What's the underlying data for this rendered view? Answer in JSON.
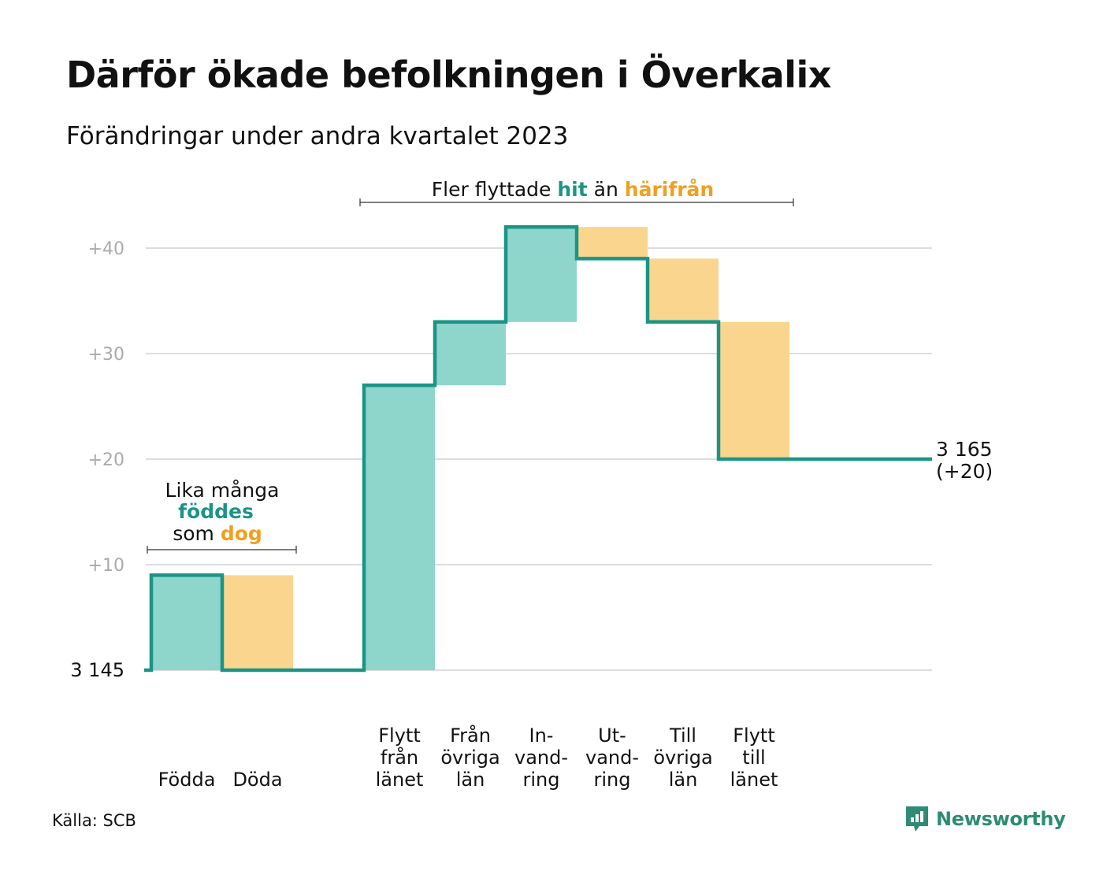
{
  "title": "Därför ökade befolkningen i Överkalix",
  "subtitle": "Förändringar under andra kvartalet 2023",
  "source": "Källa: SCB",
  "brand": {
    "name": "Newsworthy",
    "icon": "newsworthy-logo-icon"
  },
  "colors": {
    "increase": "#8ed5cc",
    "decrease": "#fad58e",
    "line": "#1b9486",
    "teal_text": "#1b9486",
    "orange_text": "#f0a01e",
    "grid": "#dddddd",
    "tick_text": "#aaaaaa"
  },
  "annotations": {
    "natural": {
      "line1": "Lika många",
      "word_in": "föddes",
      "word_mid": "som",
      "word_out": "dog"
    },
    "migration": {
      "prefix": "Fler flyttade",
      "word_in": "hit",
      "word_mid": "än",
      "word_out": "härifrån"
    }
  },
  "chart_data": {
    "type": "waterfall",
    "start_value": 3145,
    "start_label": "3  145",
    "end_value": 3165,
    "end_label_line1": "3 165",
    "end_label_line2": "(+20)",
    "y_ticks": [
      {
        "value": 10,
        "label": "+10"
      },
      {
        "value": 20,
        "label": "+20"
      },
      {
        "value": 30,
        "label": "+30"
      },
      {
        "value": 40,
        "label": "+40"
      }
    ],
    "ylim": [
      0,
      42
    ],
    "grid": true,
    "groups": [
      {
        "name": "natural",
        "steps": [
          {
            "category": "Födda",
            "label_lines": [
              "Födda"
            ],
            "change": 9,
            "direction": "in"
          },
          {
            "category": "Döda",
            "label_lines": [
              "Döda"
            ],
            "change": -9,
            "direction": "out"
          }
        ]
      },
      {
        "name": "migration",
        "steps": [
          {
            "category": "Flytt från länet",
            "label_lines": [
              "Flytt",
              "från",
              "länet"
            ],
            "change": 27,
            "direction": "in"
          },
          {
            "category": "Från övriga län",
            "label_lines": [
              "Från",
              "övriga",
              "län"
            ],
            "change": 6,
            "direction": "in"
          },
          {
            "category": "Invandring",
            "label_lines": [
              "In-",
              "vand-",
              "ring"
            ],
            "change": 9,
            "direction": "in"
          },
          {
            "category": "Utvandring",
            "label_lines": [
              "Ut-",
              "vand-",
              "ring"
            ],
            "change": -3,
            "direction": "out"
          },
          {
            "category": "Till övriga län",
            "label_lines": [
              "Till",
              "övriga",
              "län"
            ],
            "change": -6,
            "direction": "out"
          },
          {
            "category": "Flytt till länet",
            "label_lines": [
              "Flytt",
              "till",
              "länet"
            ],
            "change": -13,
            "direction": "out"
          }
        ]
      }
    ]
  }
}
